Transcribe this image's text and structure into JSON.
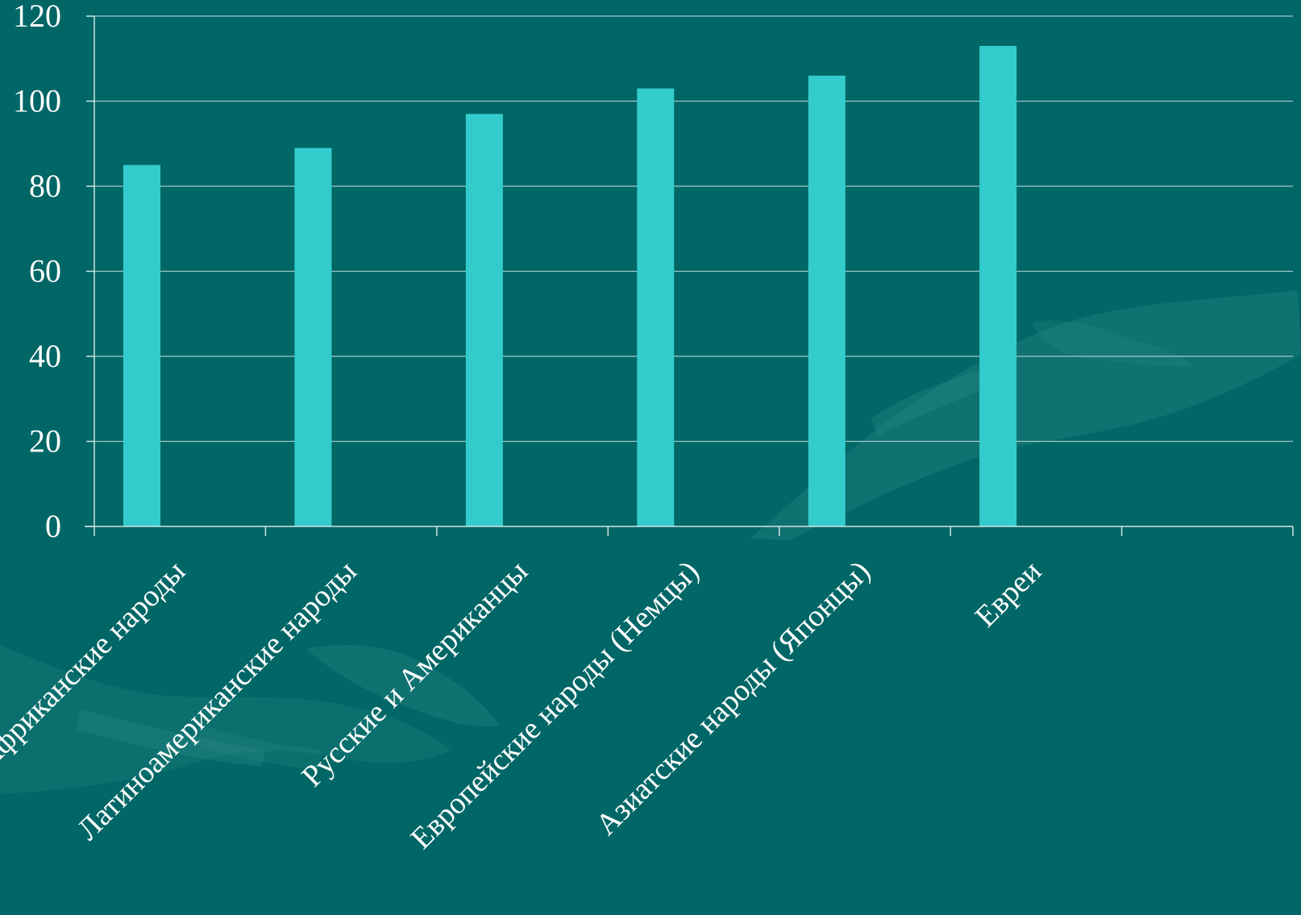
{
  "colors": {
    "background": "#006666",
    "bar": "#33cccc",
    "text": "#ffffff",
    "grid": "#9fc9c9",
    "decor": "#2a8a86"
  },
  "chart_data": {
    "type": "bar",
    "categories": [
      "Африканские народы",
      "Латиноамериканские народы",
      "Русские и Американцы",
      "Европейские народы (Немцы)",
      "Азиатские народы (Японцы)",
      "Евреи",
      ""
    ],
    "series": [
      {
        "values": [
          85,
          89,
          97,
          103,
          106,
          113,
          null
        ]
      }
    ],
    "yticks": [
      "0",
      "20",
      "40",
      "60",
      "80",
      "100",
      "120"
    ],
    "ylim": [
      0,
      120
    ],
    "title": "",
    "xlabel": "",
    "ylabel": "",
    "grid": true,
    "legend": "none"
  }
}
